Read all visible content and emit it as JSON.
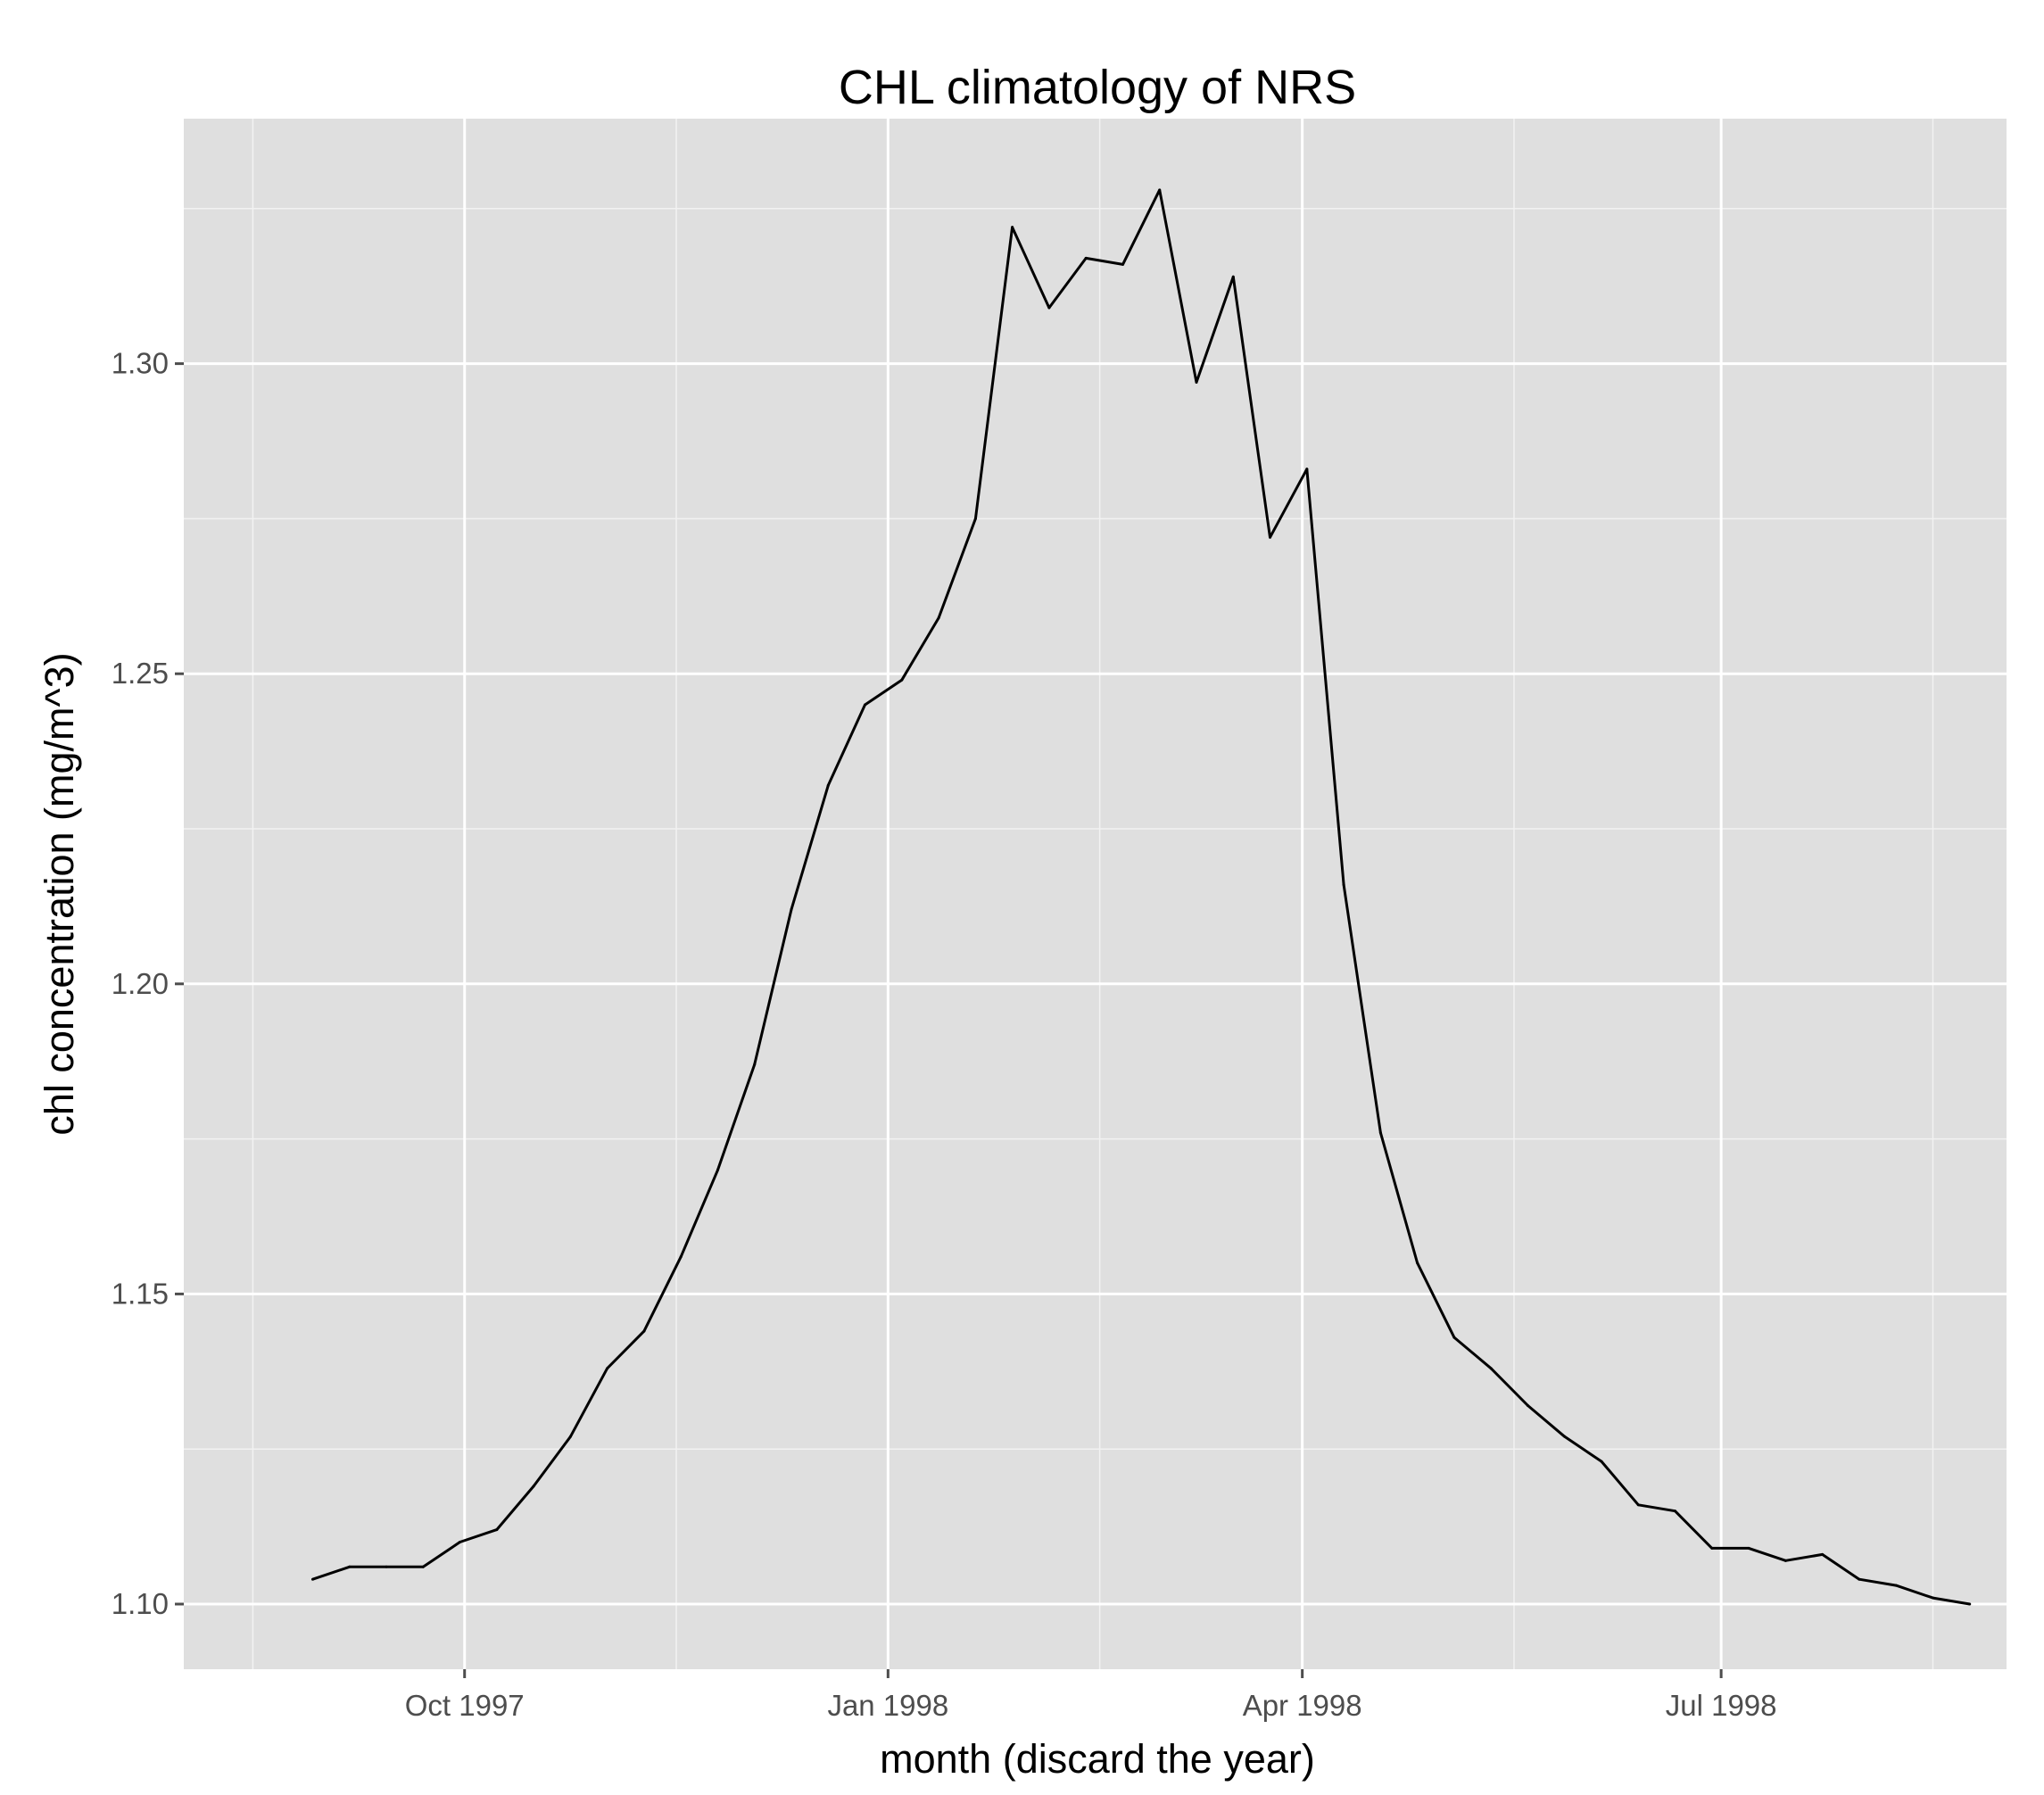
{
  "chart_data": {
    "type": "line",
    "title": "CHL climatology of NRS",
    "xlabel": "month (discard the year)",
    "ylabel": "chl concentration (mg/m^3)",
    "x_tick_labels": [
      {
        "label": "Oct 1997",
        "date": "1997-10-01"
      },
      {
        "label": "Jan 1998",
        "date": "1998-01-01"
      },
      {
        "label": "Apr 1998",
        "date": "1998-04-01"
      },
      {
        "label": "Jul 1998",
        "date": "1998-07-01"
      }
    ],
    "y_tick_labels": [
      "1.10",
      "1.15",
      "1.20",
      "1.25",
      "1.30"
    ],
    "y_ticks": [
      1.1,
      1.15,
      1.2,
      1.25,
      1.3
    ],
    "xlim": [
      "1997-08-01",
      "1998-09-01"
    ],
    "ylim": [
      1.0895,
      1.3395
    ],
    "grid": true,
    "background": "#dfdfdf",
    "line_color": "#000000",
    "series": [
      {
        "x": [
          "1997-08-29",
          "1997-09-06",
          "1997-09-14",
          "1997-09-22",
          "1997-09-30",
          "1997-10-08",
          "1997-10-16",
          "1997-10-24",
          "1997-11-01",
          "1997-11-09",
          "1997-11-17",
          "1997-11-25",
          "1997-12-03",
          "1997-12-11",
          "1997-12-19",
          "1997-12-27",
          "1998-01-04",
          "1998-01-12",
          "1998-01-20",
          "1998-01-28",
          "1998-02-05",
          "1998-02-13",
          "1998-02-21",
          "1998-03-01",
          "1998-03-09",
          "1998-03-17",
          "1998-03-25",
          "1998-04-02",
          "1998-04-10",
          "1998-04-18",
          "1998-04-26",
          "1998-05-04",
          "1998-05-12",
          "1998-05-20",
          "1998-05-28",
          "1998-06-05",
          "1998-06-13",
          "1998-06-21",
          "1998-06-29",
          "1998-07-07",
          "1998-07-15",
          "1998-07-23",
          "1998-07-31",
          "1998-08-08",
          "1998-08-16",
          "1998-08-24"
        ],
        "values": [
          1.104,
          1.106,
          1.106,
          1.106,
          1.11,
          1.112,
          1.119,
          1.127,
          1.138,
          1.144,
          1.156,
          1.17,
          1.187,
          1.212,
          1.232,
          1.245,
          1.249,
          1.259,
          1.275,
          1.322,
          1.309,
          1.317,
          1.316,
          1.328,
          1.297,
          1.314,
          1.272,
          1.283,
          1.216,
          1.176,
          1.155,
          1.143,
          1.138,
          1.132,
          1.127,
          1.123,
          1.116,
          1.115,
          1.109,
          1.109,
          1.107,
          1.108,
          1.104,
          1.103,
          1.101,
          1.1
        ]
      }
    ]
  }
}
